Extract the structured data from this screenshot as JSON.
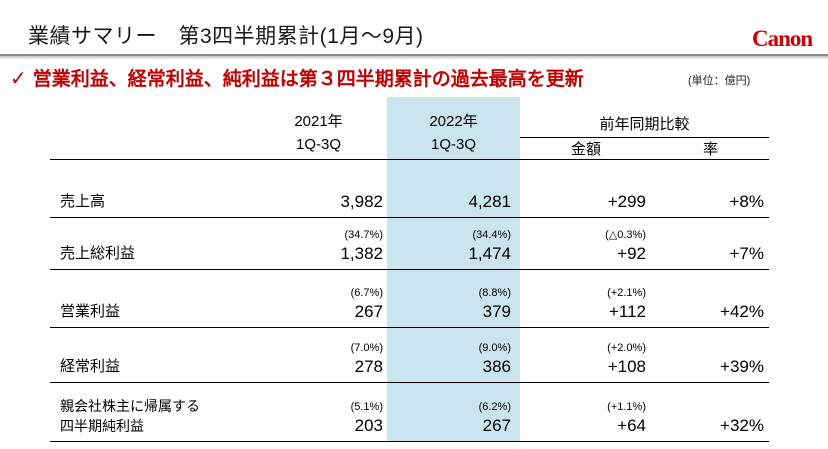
{
  "header": {
    "title": "業績サマリー　第3四半期累計(1月～9月)",
    "logo_text": "Canon"
  },
  "highlight": {
    "checkmark": "✓",
    "text": "営業利益、経常利益、純利益は第３四半期累計の過去最高を更新",
    "unit_note": "(単位：億円)"
  },
  "table": {
    "col_headers": {
      "fy2021_year": "2021年",
      "fy2021_period": "1Q-3Q",
      "fy2022_year": "2022年",
      "fy2022_period": "1Q-3Q",
      "yoy_group": "前年同期比較",
      "yoy_amount": "金額",
      "yoy_rate": "率"
    },
    "rows": [
      {
        "label": "売上高",
        "label2": "",
        "fy2021_pct": "",
        "fy2021": "3,982",
        "fy2022_pct": "",
        "fy2022": "4,281",
        "amount_pct": "",
        "amount": "+299",
        "rate": "+8%"
      },
      {
        "label": "売上総利益",
        "label2": "",
        "fy2021_pct": "(34.7%)",
        "fy2021": "1,382",
        "fy2022_pct": "(34.4%)",
        "fy2022": "1,474",
        "amount_pct": "(△0.3%)",
        "amount": "+92",
        "rate": "+7%"
      },
      {
        "label": "営業利益",
        "label2": "",
        "fy2021_pct": "(6.7%)",
        "fy2021": "267",
        "fy2022_pct": "(8.8%)",
        "fy2022": "379",
        "amount_pct": "(+2.1%)",
        "amount": "+112",
        "rate": "+42%"
      },
      {
        "label": "経常利益",
        "label2": "",
        "fy2021_pct": "(7.0%)",
        "fy2021": "278",
        "fy2022_pct": "(9.0%)",
        "fy2022": "386",
        "amount_pct": "(+2.0%)",
        "amount": "+108",
        "rate": "+39%"
      },
      {
        "label": "親会社株主に帰属する",
        "label2": "四半期純利益",
        "fy2021_pct": "(5.1%)",
        "fy2021": "203",
        "fy2022_pct": "(6.2%)",
        "fy2022": "267",
        "amount_pct": "(+1.1%)",
        "amount": "+64",
        "rate": "+32%"
      }
    ]
  },
  "colors": {
    "accent_red": "#C00000",
    "canon_red": "#CC0000",
    "highlight_blue": "#CBE5EF"
  }
}
